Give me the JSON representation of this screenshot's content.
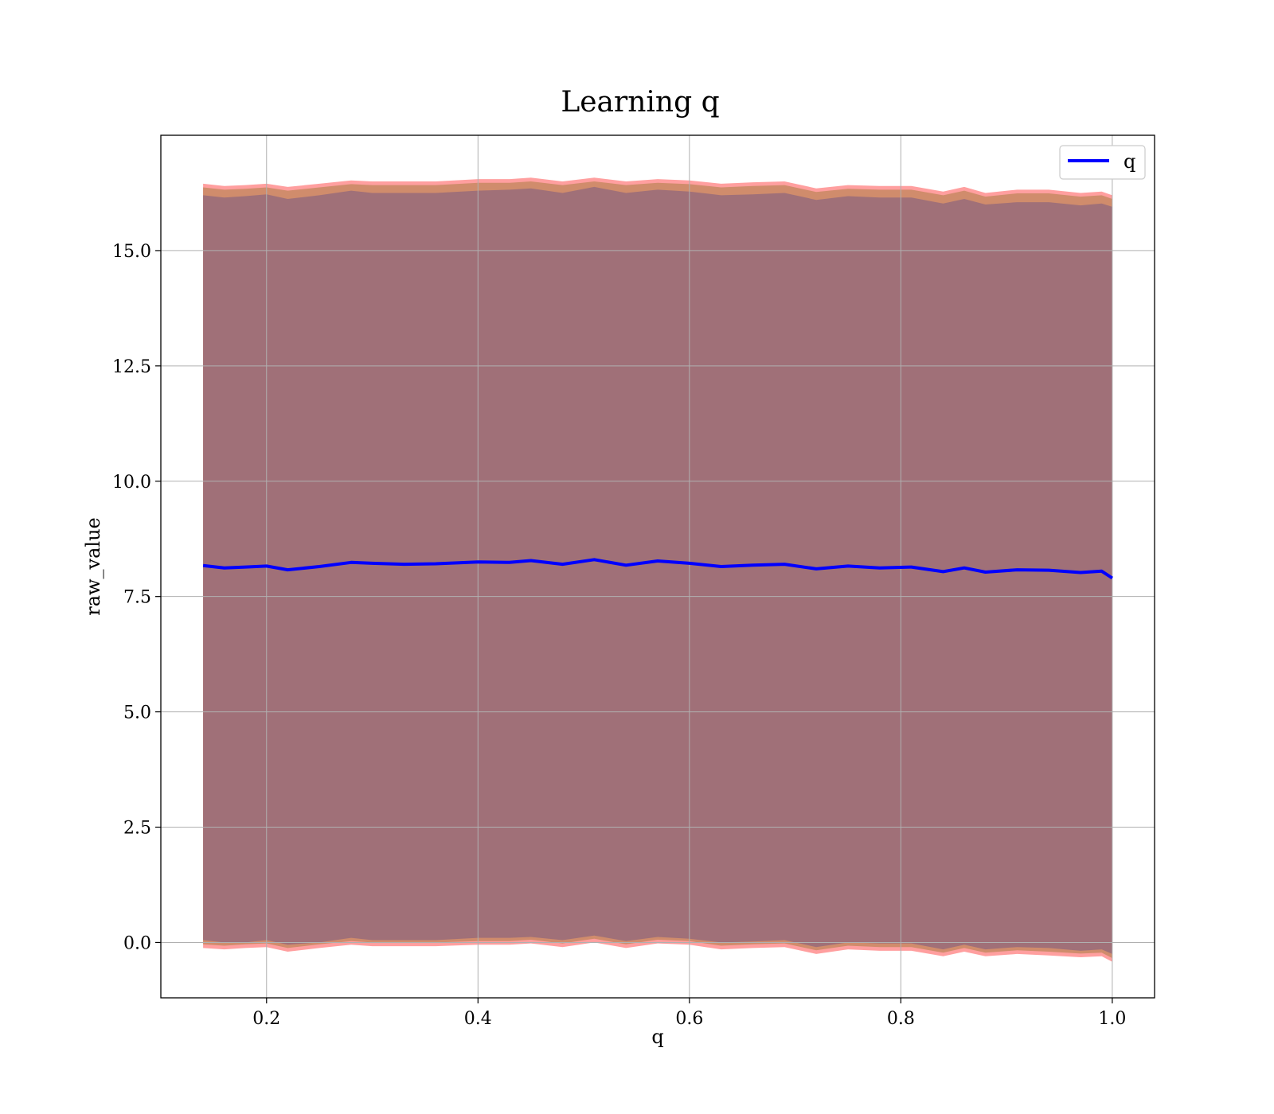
{
  "chart_data": {
    "type": "line",
    "title": "Learning q",
    "xlabel": "q",
    "ylabel": "raw_value",
    "xlim": [
      0.1,
      1.04
    ],
    "ylim": [
      -1.2,
      17.5
    ],
    "xticks": [
      0.2,
      0.4,
      0.6,
      0.8,
      1.0
    ],
    "xtick_labels": [
      "0.2",
      "0.4",
      "0.6",
      "0.8",
      "1.0"
    ],
    "yticks": [
      0.0,
      2.5,
      5.0,
      7.5,
      10.0,
      12.5,
      15.0
    ],
    "ytick_labels": [
      "0.0",
      "2.5",
      "5.0",
      "7.5",
      "10.0",
      "12.5",
      "15.0"
    ],
    "grid": true,
    "legend": {
      "position": "top-right",
      "entries": [
        "q"
      ]
    },
    "colors": {
      "line": "#0000ff",
      "outer_band": "#ff7f7f",
      "middle_band": "#d08c6c",
      "inner_band": "#a07078"
    },
    "series": [
      {
        "name": "q",
        "x": [
          0.14,
          0.16,
          0.18,
          0.2,
          0.22,
          0.25,
          0.28,
          0.3,
          0.33,
          0.36,
          0.4,
          0.43,
          0.45,
          0.48,
          0.51,
          0.54,
          0.57,
          0.6,
          0.63,
          0.66,
          0.69,
          0.72,
          0.75,
          0.78,
          0.81,
          0.84,
          0.86,
          0.88,
          0.91,
          0.94,
          0.97,
          0.99,
          1.0
        ],
        "y": [
          8.17,
          8.12,
          8.14,
          8.16,
          8.08,
          8.15,
          8.24,
          8.22,
          8.2,
          8.21,
          8.25,
          8.24,
          8.28,
          8.2,
          8.3,
          8.18,
          8.27,
          8.22,
          8.15,
          8.18,
          8.2,
          8.1,
          8.16,
          8.12,
          8.14,
          8.04,
          8.12,
          8.03,
          8.08,
          8.07,
          8.02,
          8.05,
          7.9
        ],
        "inner_lower": [
          0.05,
          0.0,
          0.0,
          0.05,
          -0.05,
          0.0,
          0.1,
          0.05,
          0.05,
          0.05,
          0.1,
          0.1,
          0.12,
          0.05,
          0.15,
          0.03,
          0.12,
          0.08,
          0.0,
          0.02,
          0.05,
          -0.1,
          0.0,
          -0.02,
          -0.02,
          -0.15,
          -0.05,
          -0.15,
          -0.1,
          -0.12,
          -0.18,
          -0.15,
          -0.25
        ],
        "inner_upper": [
          16.2,
          16.15,
          16.18,
          16.22,
          16.12,
          16.2,
          16.3,
          16.25,
          16.25,
          16.25,
          16.3,
          16.32,
          16.35,
          16.25,
          16.38,
          16.25,
          16.32,
          16.28,
          16.2,
          16.22,
          16.25,
          16.1,
          16.18,
          16.15,
          16.15,
          16.02,
          16.12,
          16.0,
          16.05,
          16.05,
          15.98,
          16.02,
          15.95
        ],
        "outer_lower": [
          -0.12,
          -0.15,
          -0.12,
          -0.1,
          -0.2,
          -0.12,
          -0.05,
          -0.08,
          -0.08,
          -0.08,
          -0.05,
          -0.05,
          -0.02,
          -0.1,
          0.0,
          -0.12,
          -0.02,
          -0.05,
          -0.15,
          -0.12,
          -0.1,
          -0.25,
          -0.15,
          -0.18,
          -0.18,
          -0.3,
          -0.2,
          -0.3,
          -0.25,
          -0.28,
          -0.32,
          -0.3,
          -0.42
        ],
        "outer_upper": [
          16.45,
          16.4,
          16.42,
          16.45,
          16.38,
          16.45,
          16.52,
          16.5,
          16.5,
          16.5,
          16.55,
          16.55,
          16.58,
          16.5,
          16.58,
          16.5,
          16.55,
          16.52,
          16.45,
          16.48,
          16.5,
          16.35,
          16.42,
          16.4,
          16.4,
          16.28,
          16.38,
          16.25,
          16.32,
          16.32,
          16.25,
          16.28,
          16.2
        ]
      }
    ]
  }
}
